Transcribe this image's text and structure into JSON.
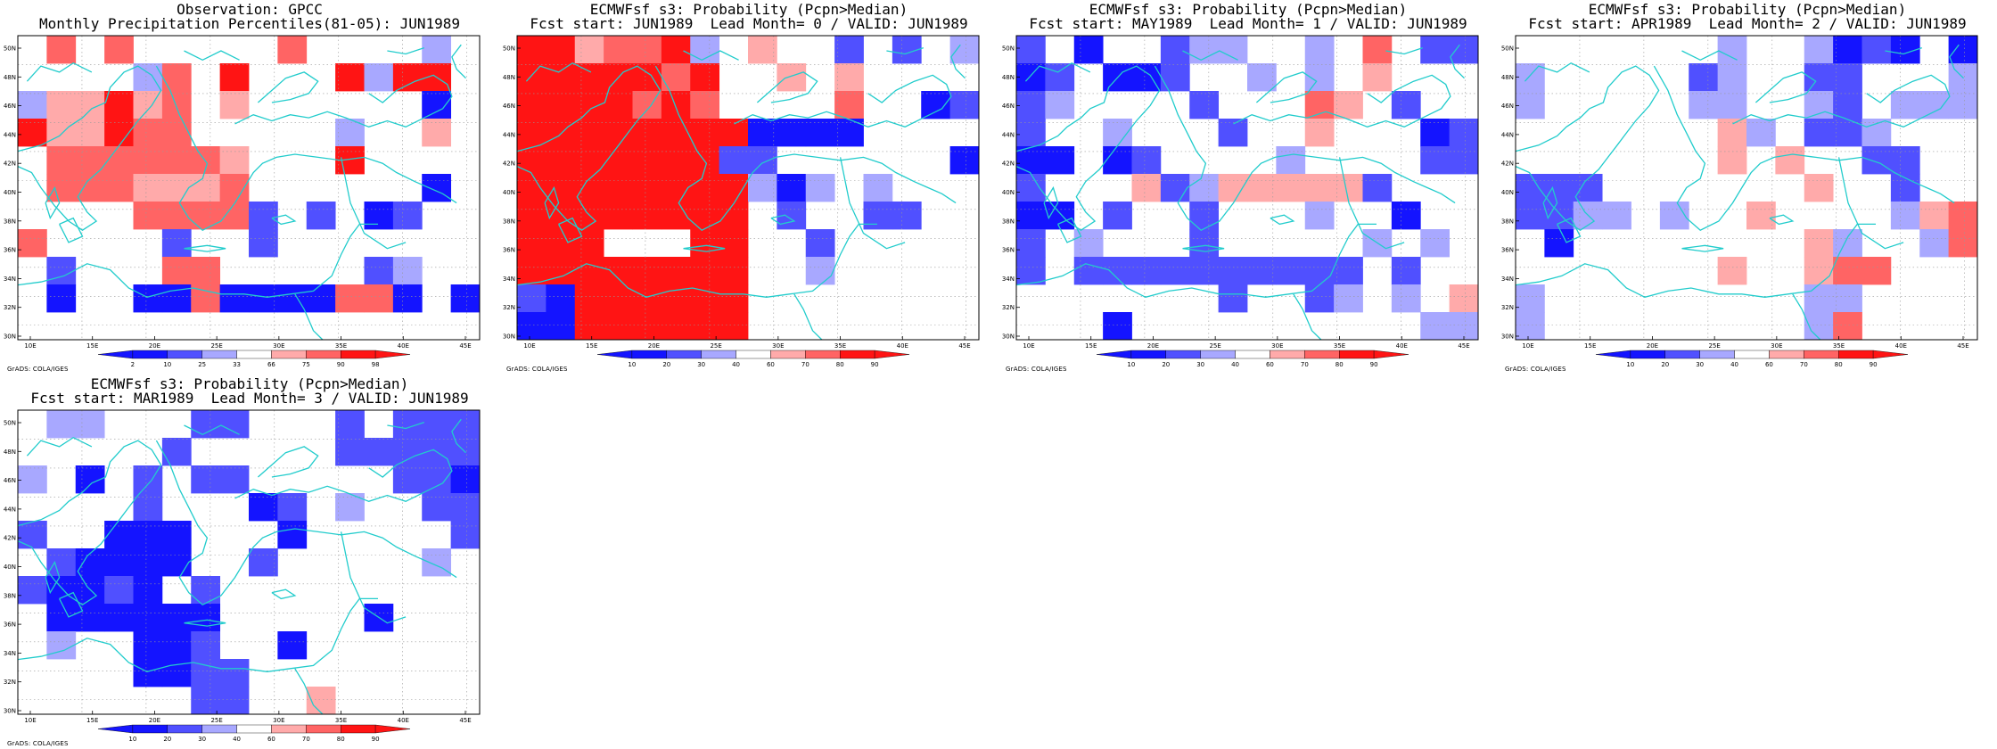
{
  "colors": {
    "blue_dark": "#1414ff",
    "blue_mid": "#5050ff",
    "blue_light": "#a8a8ff",
    "red_light": "#ffaaaa",
    "red_mid": "#ff6464",
    "red_dark": "#ff1414",
    "coast": "#22cccc"
  },
  "x_ticks": [
    "10E",
    "15E",
    "20E",
    "25E",
    "30E",
    "35E",
    "40E",
    "45E"
  ],
  "y_ticks": [
    "50N",
    "48N",
    "46N",
    "44N",
    "42N",
    "40N",
    "38N",
    "36N",
    "34N",
    "32N",
    "30N"
  ],
  "credit": "GrADS: COLA/IGES",
  "panels": [
    {
      "id": "obs",
      "title1": "Observation: GPCC",
      "title2": "Monthly Precipitation Percentiles(81-05): JUN1989",
      "cbar_labels": [
        "2",
        "10",
        "25",
        "33",
        "66",
        "75",
        "90",
        "98"
      ],
      "grid": [
        "0E0E00G00E0G00C0",
        "0000CE0F000FCFF0",
        "CDDFDE0D000000A0",
        "FDDFEE00000C00D0",
        "0EEEEEED000F0000",
        "0EEEDDDE000000A0",
        "0000EEEEB0B0AB00",
        "E0000B00B0000000",
        "0B000EE00000BC00",
        "0A00AAEAAAAEEA0A",
        "0000000000000000"
      ]
    },
    {
      "id": "lead0",
      "title1": "ECMWFsf s3: Probability (Pcpn>Median)",
      "title2": "Fcst start: JUN1989  Lead Month= 0 / VALID: JUN1989",
      "cbar_labels": [
        "10",
        "20",
        "30",
        "40",
        "60",
        "70",
        "80",
        "90"
      ],
      "grid": [
        "FFDEEFC0D00B0B0C",
        "FFFFFEF00D0D0000",
        "FFFFEFE0000E00AB",
        "FFFFFFFFAAAA0000",
        "FFFFFFFBB000000A",
        "FFFFFFFFCAC0C000",
        "FFFFFFFF0B00BB00",
        "FFF000FF00B00000",
        "FFFFFFFF00C00000",
        "BAFFFFFF00000000",
        "AAFFFFFF00000000"
      ]
    },
    {
      "id": "lead1",
      "title1": "ECMWFsf s3: Probability (Pcpn>Median)",
      "title2": "Fcst start: MAY1989  Lead Month= 1 / VALID: JUN1989",
      "cbar_labels": [
        "10",
        "20",
        "30",
        "40",
        "60",
        "70",
        "80",
        "90"
      ],
      "grid": [
        "B0A00BCC00C0E0BB",
        "AB0AAB00C0C0D000",
        "BC0000B000ED0B00",
        "B00C000B00D000AB",
        "AA0AB0000C0000BB",
        "B000DBCDDDDDB000",
        "AA0B00B000C00A00",
        "B0C000B00000C0C0",
        "B0BBBBBBBBBB0B00",
        "0000000B00BC0C0D",
        "000A0000000000CC"
      ]
    },
    {
      "id": "lead2",
      "title1": "ECMWFsf s3: Probability (Pcpn>Median)",
      "title2": "Fcst start: APR1989  Lead Month= 2 / VALID: JUN1989",
      "cbar_labels": [
        "10",
        "20",
        "30",
        "40",
        "60",
        "70",
        "80",
        "90"
      ],
      "grid": [
        "0000000C00CABA0A",
        "C00000BC00BB000C",
        "C00000CC00CB0CCC",
        "0000000DC0BBC000",
        "0000000D0D00BB00",
        "BBB0000000D00B00",
        "BBCC0C00D0000CDE",
        "0A00000000DC00CE",
        "0000000D00DEE000",
        "C000000000CC0000",
        "C000000000CE0000"
      ]
    },
    {
      "id": "lead3",
      "title1": "ECMWFsf s3: Probability (Pcpn>Median)",
      "title2": "Fcst start: MAR1989  Lead Month= 3 / VALID: JUN1989",
      "cbar_labels": [
        "10",
        "20",
        "30",
        "40",
        "60",
        "70",
        "80",
        "90"
      ],
      "grid": [
        "0CC000BB000B0BBB",
        "00000B00000BBBBB",
        "C0A0B0BB00000BBA",
        "0000B000AB0C00BB",
        "B00AAA000A00000B",
        "0BAAAA00B00000C0",
        "BAABA0B000000000",
        "0AAAAAA00000A000",
        "0C00AAB00A000000",
        "0000AABB00000000",
        "000000BB00D00000"
      ]
    }
  ]
}
